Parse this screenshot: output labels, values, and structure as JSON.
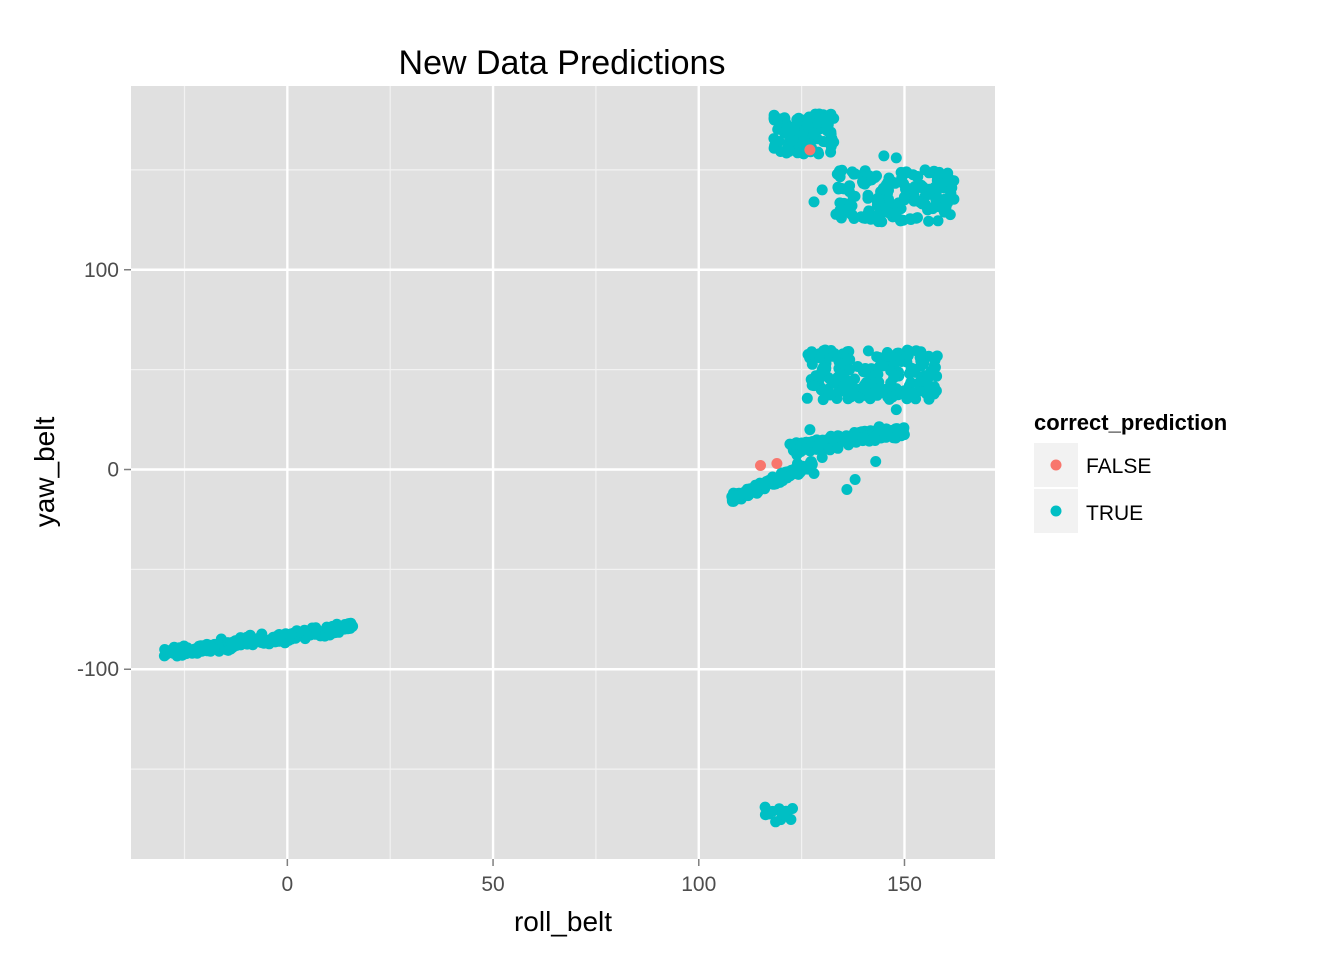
{
  "chart_data": {
    "type": "scatter",
    "title": "New Data Predictions",
    "xlabel": "roll_belt",
    "ylabel": "yaw_belt",
    "xlim": [
      -38,
      172
    ],
    "ylim": [
      -195,
      192
    ],
    "x_ticks": [
      0,
      50,
      100,
      150
    ],
    "x_minor_ticks": [
      -25,
      25,
      75,
      125
    ],
    "y_ticks": [
      -100,
      0,
      100
    ],
    "y_minor_ticks": [
      -150,
      -50,
      50,
      150
    ],
    "grid": true,
    "legend": {
      "title": "correct_prediction",
      "placement": "right",
      "entries": [
        "FALSE",
        "TRUE"
      ]
    },
    "series": [
      {
        "name": "FALSE",
        "color": "#F8766D",
        "points": [
          [
            115,
            2
          ],
          [
            127,
            160
          ],
          [
            119,
            3
          ]
        ]
      },
      {
        "name": "TRUE",
        "color": "#00BFC4",
        "clusters": [
          {
            "x": [
              -30,
              16
            ],
            "y": [
              -95,
              -76
            ],
            "slope": 0.3,
            "spread": 4,
            "n": 240
          },
          {
            "x": [
              118,
              133
            ],
            "y": [
              158,
              178
            ],
            "slope": 0,
            "spread": 5,
            "n": 110
          },
          {
            "x": [
              133,
              162
            ],
            "y": [
              124,
              150
            ],
            "slope": 0,
            "spread": 6,
            "n": 150
          },
          {
            "x": [
              108,
              128
            ],
            "y": [
              -18,
              6
            ],
            "slope": 0.9,
            "spread": 3,
            "n": 150
          },
          {
            "x": [
              122,
              150
            ],
            "y": [
              2,
              28
            ],
            "slope": 0.3,
            "spread": 5,
            "n": 150
          },
          {
            "x": [
              126,
              158
            ],
            "y": [
              35,
              60
            ],
            "slope": 0,
            "spread": 6,
            "n": 180
          },
          {
            "x": [
              116,
              123
            ],
            "y": [
              -178,
              -168
            ],
            "slope": 0,
            "spread": 3,
            "n": 14
          }
        ],
        "points": [
          [
            128,
            134
          ],
          [
            145,
            157
          ],
          [
            148,
            156
          ],
          [
            150,
            135
          ],
          [
            155,
            150
          ],
          [
            142,
            145
          ],
          [
            138,
            148
          ],
          [
            130,
            140
          ],
          [
            127,
            20
          ],
          [
            148,
            30
          ],
          [
            152,
            38
          ],
          [
            128,
            42
          ],
          [
            132,
            45
          ],
          [
            145,
            40
          ],
          [
            140,
            16
          ],
          [
            143,
            4
          ],
          [
            138,
            -5
          ],
          [
            136,
            -10
          ],
          [
            130,
            6
          ],
          [
            124,
            3
          ],
          [
            128,
            -2
          ]
        ]
      }
    ]
  }
}
